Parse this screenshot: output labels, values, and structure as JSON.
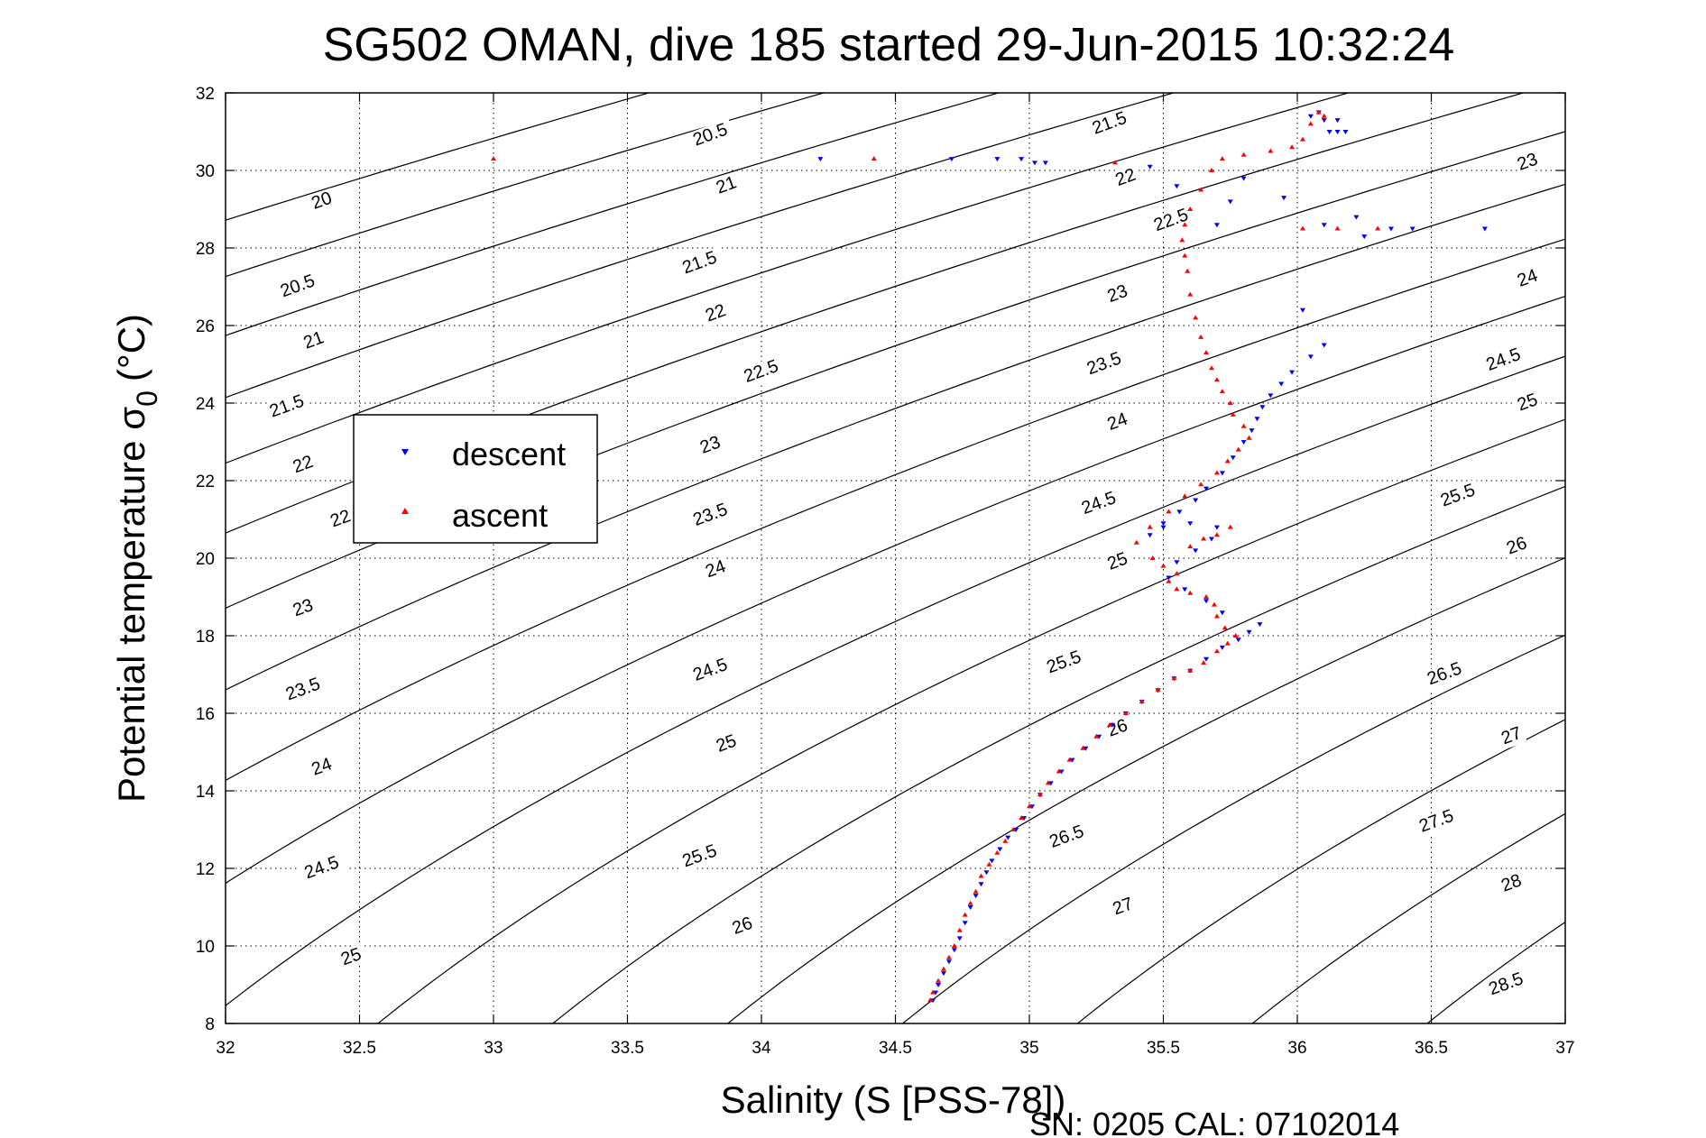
{
  "chart_data": {
    "type": "scatter",
    "title": "SG502 OMAN, dive 185 started 29-Jun-2015 10:32:24",
    "xlabel": "Salinity (S [PSS-78])",
    "ylabel_main": "Potential temperature σ",
    "ylabel_sub": "0",
    "ylabel_unit": "(°C)",
    "footer": "SN: 0205  CAL: 07102014",
    "xlim": [
      32,
      37
    ],
    "ylim": [
      8,
      32
    ],
    "x_ticks": [
      32,
      32.5,
      33,
      33.5,
      34,
      34.5,
      35,
      35.5,
      36,
      36.5,
      37
    ],
    "x_tick_labels": [
      "32",
      "32.5",
      "33",
      "33.5",
      "34",
      "34.5",
      "35",
      "35.5",
      "36",
      "36.5",
      "37"
    ],
    "y_ticks": [
      8,
      10,
      12,
      14,
      16,
      18,
      20,
      22,
      24,
      26,
      28,
      30,
      32
    ],
    "y_tick_labels": [
      "8",
      "10",
      "12",
      "14",
      "16",
      "18",
      "20",
      "22",
      "24",
      "26",
      "28",
      "30",
      "32"
    ],
    "grid": true,
    "grid_style": "dotted",
    "legend_position": "upper-left",
    "density_contours": {
      "levels": [
        20,
        20.5,
        21,
        21.5,
        22,
        22.5,
        23,
        23.5,
        24,
        24.5,
        25,
        25.5,
        26,
        26.5,
        27,
        27.5,
        28,
        28.5
      ],
      "label_positions": [
        {
          "level": "20",
          "s": 32.36,
          "t": 29.2
        },
        {
          "level": "20.5",
          "s": 32.27,
          "t": 27.0
        },
        {
          "level": "21",
          "s": 32.33,
          "t": 25.6
        },
        {
          "level": "21.5",
          "s": 32.23,
          "t": 23.9
        },
        {
          "level": "22",
          "s": 32.29,
          "t": 22.4
        },
        {
          "level": "22",
          "s": 32.43,
          "t": 21.0
        },
        {
          "level": "23",
          "s": 32.29,
          "t": 18.7
        },
        {
          "level": "23.5",
          "s": 32.29,
          "t": 16.6
        },
        {
          "level": "24",
          "s": 32.36,
          "t": 14.6
        },
        {
          "level": "24.5",
          "s": 32.36,
          "t": 12.0
        },
        {
          "level": "25",
          "s": 32.47,
          "t": 9.7
        },
        {
          "level": "20.5",
          "s": 33.81,
          "t": 30.9
        },
        {
          "level": "21",
          "s": 33.87,
          "t": 29.6
        },
        {
          "level": "21.5",
          "s": 33.77,
          "t": 27.6
        },
        {
          "level": "22",
          "s": 33.83,
          "t": 26.3
        },
        {
          "level": "22.5",
          "s": 34.0,
          "t": 24.8
        },
        {
          "level": "23",
          "s": 33.81,
          "t": 22.9
        },
        {
          "level": "23.5",
          "s": 33.81,
          "t": 21.1
        },
        {
          "level": "24",
          "s": 33.83,
          "t": 19.7
        },
        {
          "level": "24.5",
          "s": 33.81,
          "t": 17.1
        },
        {
          "level": "25",
          "s": 33.87,
          "t": 15.2
        },
        {
          "level": "25.5",
          "s": 33.77,
          "t": 12.3
        },
        {
          "level": "26",
          "s": 33.93,
          "t": 10.5
        },
        {
          "level": "21.5",
          "s": 35.3,
          "t": 31.2
        },
        {
          "level": "22",
          "s": 35.36,
          "t": 29.8
        },
        {
          "level": "22.5",
          "s": 35.53,
          "t": 28.7
        },
        {
          "level": "23",
          "s": 35.33,
          "t": 26.8
        },
        {
          "level": "23.5",
          "s": 35.28,
          "t": 25.0
        },
        {
          "level": "24",
          "s": 35.33,
          "t": 23.5
        },
        {
          "level": "24.5",
          "s": 35.26,
          "t": 21.4
        },
        {
          "level": "25",
          "s": 35.33,
          "t": 19.9
        },
        {
          "level": "25.5",
          "s": 35.13,
          "t": 17.3
        },
        {
          "level": "26",
          "s": 35.33,
          "t": 15.6
        },
        {
          "level": "26.5",
          "s": 35.14,
          "t": 12.8
        },
        {
          "level": "27",
          "s": 35.35,
          "t": 11.0
        },
        {
          "level": "23",
          "s": 36.86,
          "t": 30.2
        },
        {
          "level": "24",
          "s": 36.86,
          "t": 27.2
        },
        {
          "level": "24.5",
          "s": 36.77,
          "t": 25.1
        },
        {
          "level": "25",
          "s": 36.86,
          "t": 24.0
        },
        {
          "level": "25.5",
          "s": 36.6,
          "t": 21.6
        },
        {
          "level": "26",
          "s": 36.82,
          "t": 20.3
        },
        {
          "level": "26.5",
          "s": 36.55,
          "t": 17.0
        },
        {
          "level": "27",
          "s": 36.8,
          "t": 15.4
        },
        {
          "level": "27.5",
          "s": 36.52,
          "t": 13.2
        },
        {
          "level": "28",
          "s": 36.8,
          "t": 11.6
        },
        {
          "level": "28.5",
          "s": 36.78,
          "t": 9.0
        }
      ]
    },
    "series": [
      {
        "name": "descent",
        "color": "#0000ff",
        "marker": "triangle-down",
        "points": [
          [
            34.64,
            8.6
          ],
          [
            34.65,
            8.8
          ],
          [
            34.66,
            9.0
          ],
          [
            34.68,
            9.3
          ],
          [
            34.7,
            9.6
          ],
          [
            34.72,
            9.9
          ],
          [
            34.74,
            10.2
          ],
          [
            34.76,
            10.6
          ],
          [
            34.78,
            11.0
          ],
          [
            34.8,
            11.3
          ],
          [
            34.82,
            11.6
          ],
          [
            34.84,
            11.9
          ],
          [
            34.86,
            12.2
          ],
          [
            34.89,
            12.5
          ],
          [
            34.92,
            12.8
          ],
          [
            34.95,
            13.0
          ],
          [
            34.98,
            13.3
          ],
          [
            35.01,
            13.6
          ],
          [
            35.04,
            13.9
          ],
          [
            35.08,
            14.2
          ],
          [
            35.12,
            14.5
          ],
          [
            35.16,
            14.8
          ],
          [
            35.21,
            15.1
          ],
          [
            35.26,
            15.4
          ],
          [
            35.31,
            15.7
          ],
          [
            35.36,
            16.0
          ],
          [
            35.42,
            16.3
          ],
          [
            35.48,
            16.6
          ],
          [
            35.54,
            16.9
          ],
          [
            35.6,
            17.1
          ],
          [
            35.66,
            17.4
          ],
          [
            35.72,
            17.7
          ],
          [
            35.78,
            17.9
          ],
          [
            35.82,
            18.1
          ],
          [
            35.86,
            18.3
          ],
          [
            35.72,
            18.6
          ],
          [
            35.66,
            18.9
          ],
          [
            35.58,
            19.2
          ],
          [
            35.52,
            19.5
          ],
          [
            35.55,
            19.9
          ],
          [
            35.62,
            20.2
          ],
          [
            35.68,
            20.5
          ],
          [
            35.7,
            20.8
          ],
          [
            35.6,
            20.9
          ],
          [
            35.5,
            20.8
          ],
          [
            35.45,
            20.6
          ],
          [
            35.5,
            20.9
          ],
          [
            35.56,
            21.2
          ],
          [
            35.62,
            21.5
          ],
          [
            35.66,
            21.8
          ],
          [
            35.72,
            22.2
          ],
          [
            35.76,
            22.6
          ],
          [
            35.8,
            23.0
          ],
          [
            35.83,
            23.3
          ],
          [
            35.85,
            23.6
          ],
          [
            35.87,
            23.9
          ],
          [
            35.9,
            24.2
          ],
          [
            35.94,
            24.5
          ],
          [
            35.98,
            24.8
          ],
          [
            36.05,
            25.2
          ],
          [
            36.1,
            25.5
          ],
          [
            36.02,
            26.4
          ],
          [
            35.7,
            28.6
          ],
          [
            35.75,
            29.2
          ],
          [
            35.8,
            29.8
          ],
          [
            35.55,
            29.6
          ],
          [
            35.45,
            30.1
          ],
          [
            35.95,
            29.3
          ],
          [
            36.1,
            28.6
          ],
          [
            36.22,
            28.8
          ],
          [
            36.25,
            28.3
          ],
          [
            36.35,
            28.5
          ],
          [
            36.43,
            28.5
          ],
          [
            36.7,
            28.5
          ],
          [
            36.12,
            31.0
          ],
          [
            36.15,
            31.0
          ],
          [
            36.18,
            31.0
          ],
          [
            36.1,
            31.3
          ],
          [
            36.05,
            31.4
          ],
          [
            36.08,
            31.5
          ],
          [
            36.15,
            31.3
          ],
          [
            34.22,
            30.3
          ],
          [
            34.71,
            30.3
          ],
          [
            34.88,
            30.3
          ],
          [
            34.97,
            30.3
          ],
          [
            35.02,
            30.2
          ],
          [
            35.06,
            30.2
          ]
        ]
      },
      {
        "name": "ascent",
        "color": "#ff0000",
        "marker": "triangle-up",
        "points": [
          [
            34.63,
            8.6
          ],
          [
            34.64,
            8.8
          ],
          [
            34.66,
            9.1
          ],
          [
            34.68,
            9.4
          ],
          [
            34.7,
            9.7
          ],
          [
            34.72,
            10.0
          ],
          [
            34.74,
            10.4
          ],
          [
            34.76,
            10.8
          ],
          [
            34.78,
            11.1
          ],
          [
            34.8,
            11.4
          ],
          [
            34.82,
            11.8
          ],
          [
            34.85,
            12.1
          ],
          [
            34.88,
            12.4
          ],
          [
            34.91,
            12.7
          ],
          [
            34.94,
            13.0
          ],
          [
            34.97,
            13.3
          ],
          [
            35.0,
            13.6
          ],
          [
            35.04,
            13.9
          ],
          [
            35.07,
            14.2
          ],
          [
            35.11,
            14.5
          ],
          [
            35.15,
            14.8
          ],
          [
            35.2,
            15.1
          ],
          [
            35.25,
            15.4
          ],
          [
            35.3,
            15.7
          ],
          [
            35.36,
            16.0
          ],
          [
            35.42,
            16.3
          ],
          [
            35.48,
            16.6
          ],
          [
            35.54,
            16.9
          ],
          [
            35.6,
            17.1
          ],
          [
            35.65,
            17.3
          ],
          [
            35.7,
            17.6
          ],
          [
            35.74,
            17.8
          ],
          [
            35.77,
            18.0
          ],
          [
            35.73,
            18.2
          ],
          [
            35.7,
            18.5
          ],
          [
            35.69,
            18.8
          ],
          [
            35.66,
            19.0
          ],
          [
            35.6,
            19.1
          ],
          [
            35.55,
            19.2
          ],
          [
            35.52,
            19.4
          ],
          [
            35.55,
            19.6
          ],
          [
            35.5,
            19.8
          ],
          [
            35.46,
            20.0
          ],
          [
            35.4,
            20.4
          ],
          [
            35.45,
            20.8
          ],
          [
            35.52,
            21.2
          ],
          [
            35.58,
            21.6
          ],
          [
            35.64,
            21.9
          ],
          [
            35.7,
            22.2
          ],
          [
            35.74,
            22.5
          ],
          [
            35.78,
            22.8
          ],
          [
            35.82,
            23.1
          ],
          [
            35.8,
            23.4
          ],
          [
            35.76,
            23.7
          ],
          [
            35.75,
            24.0
          ],
          [
            35.72,
            24.3
          ],
          [
            35.7,
            24.6
          ],
          [
            35.68,
            24.9
          ],
          [
            35.66,
            25.3
          ],
          [
            35.64,
            25.7
          ],
          [
            35.62,
            26.2
          ],
          [
            35.6,
            26.8
          ],
          [
            35.59,
            27.4
          ],
          [
            35.58,
            27.8
          ],
          [
            35.57,
            28.2
          ],
          [
            35.58,
            28.6
          ],
          [
            35.6,
            29.0
          ],
          [
            35.64,
            29.5
          ],
          [
            35.68,
            30.0
          ],
          [
            35.72,
            30.3
          ],
          [
            35.8,
            30.4
          ],
          [
            35.9,
            30.5
          ],
          [
            35.98,
            30.6
          ],
          [
            36.02,
            30.8
          ],
          [
            36.05,
            31.2
          ],
          [
            36.08,
            31.5
          ],
          [
            36.1,
            31.4
          ],
          [
            36.15,
            28.5
          ],
          [
            36.3,
            28.5
          ],
          [
            35.75,
            20.8
          ],
          [
            35.7,
            20.6
          ],
          [
            35.65,
            20.5
          ],
          [
            35.6,
            20.3
          ],
          [
            33.0,
            30.3
          ],
          [
            34.42,
            30.3
          ],
          [
            35.32,
            30.2
          ],
          [
            36.02,
            28.5
          ]
        ]
      }
    ]
  }
}
